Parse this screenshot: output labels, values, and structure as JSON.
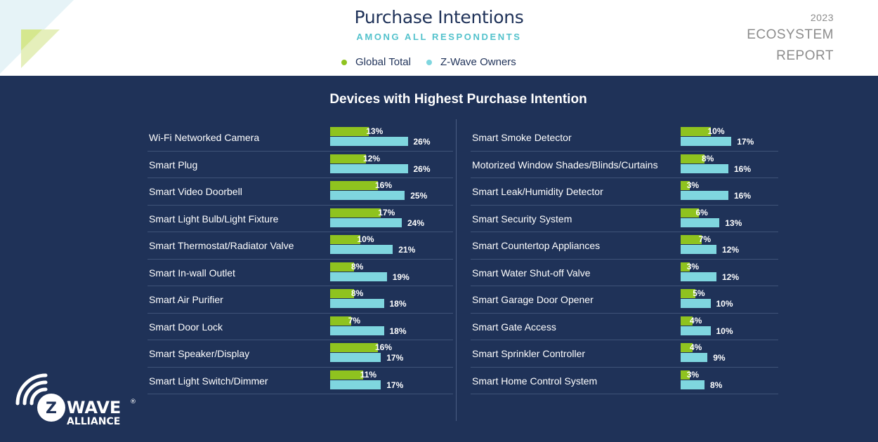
{
  "header": {
    "title": "Purchase Intentions",
    "subtitle": "AMONG ALL RESPONDENTS",
    "legend": [
      {
        "label": "Global Total",
        "color": "#8fc31f"
      },
      {
        "label": "Z-Wave Owners",
        "color": "#7fd6df"
      }
    ],
    "report": {
      "year": "2023",
      "line1": "ECOSYSTEM",
      "line2": "REPORT"
    }
  },
  "logo": {
    "text": "Z WAVE",
    "sub": "ALLIANCE",
    "mark": "®"
  },
  "chart_data": {
    "type": "bar",
    "title": "Devices with Highest Purchase Intention",
    "unit": "%",
    "series_names": [
      "Global Total",
      "Z-Wave Owners"
    ],
    "colors": {
      "global": "#8fc31f",
      "zwave": "#7fd6df"
    },
    "left": [
      {
        "label": "Wi-Fi Networked Camera",
        "global": 13,
        "zwave": 26
      },
      {
        "label": "Smart Plug",
        "global": 12,
        "zwave": 26
      },
      {
        "label": "Smart Video Doorbell",
        "global": 16,
        "zwave": 25
      },
      {
        "label": "Smart Light Bulb/Light Fixture",
        "global": 17,
        "zwave": 24
      },
      {
        "label": "Smart Thermostat/Radiator Valve",
        "global": 10,
        "zwave": 21
      },
      {
        "label": "Smart In-wall Outlet",
        "global": 8,
        "zwave": 19
      },
      {
        "label": "Smart Air Purifier",
        "global": 8,
        "zwave": 18
      },
      {
        "label": "Smart Door Lock",
        "global": 7,
        "zwave": 18
      },
      {
        "label": "Smart Speaker/Display",
        "global": 16,
        "zwave": 17
      },
      {
        "label": "Smart Light Switch/Dimmer",
        "global": 11,
        "zwave": 17
      }
    ],
    "right": [
      {
        "label": "Smart Smoke Detector",
        "global": 10,
        "zwave": 17
      },
      {
        "label": "Motorized Window Shades/Blinds/Curtains",
        "global": 8,
        "zwave": 16
      },
      {
        "label": "Smart Leak/Humidity Detector",
        "global": 3,
        "zwave": 16
      },
      {
        "label": "Smart Security System",
        "global": 6,
        "zwave": 13
      },
      {
        "label": "Smart Countertop Appliances",
        "global": 7,
        "zwave": 12
      },
      {
        "label": "Smart Water Shut-off Valve",
        "global": 3,
        "zwave": 12
      },
      {
        "label": "Smart Garage Door Opener",
        "global": 5,
        "zwave": 10
      },
      {
        "label": "Smart Gate Access",
        "global": 4,
        "zwave": 10
      },
      {
        "label": "Smart Sprinkler Controller",
        "global": 4,
        "zwave": 9
      },
      {
        "label": "Smart Home Control System",
        "global": 3,
        "zwave": 8
      }
    ]
  }
}
